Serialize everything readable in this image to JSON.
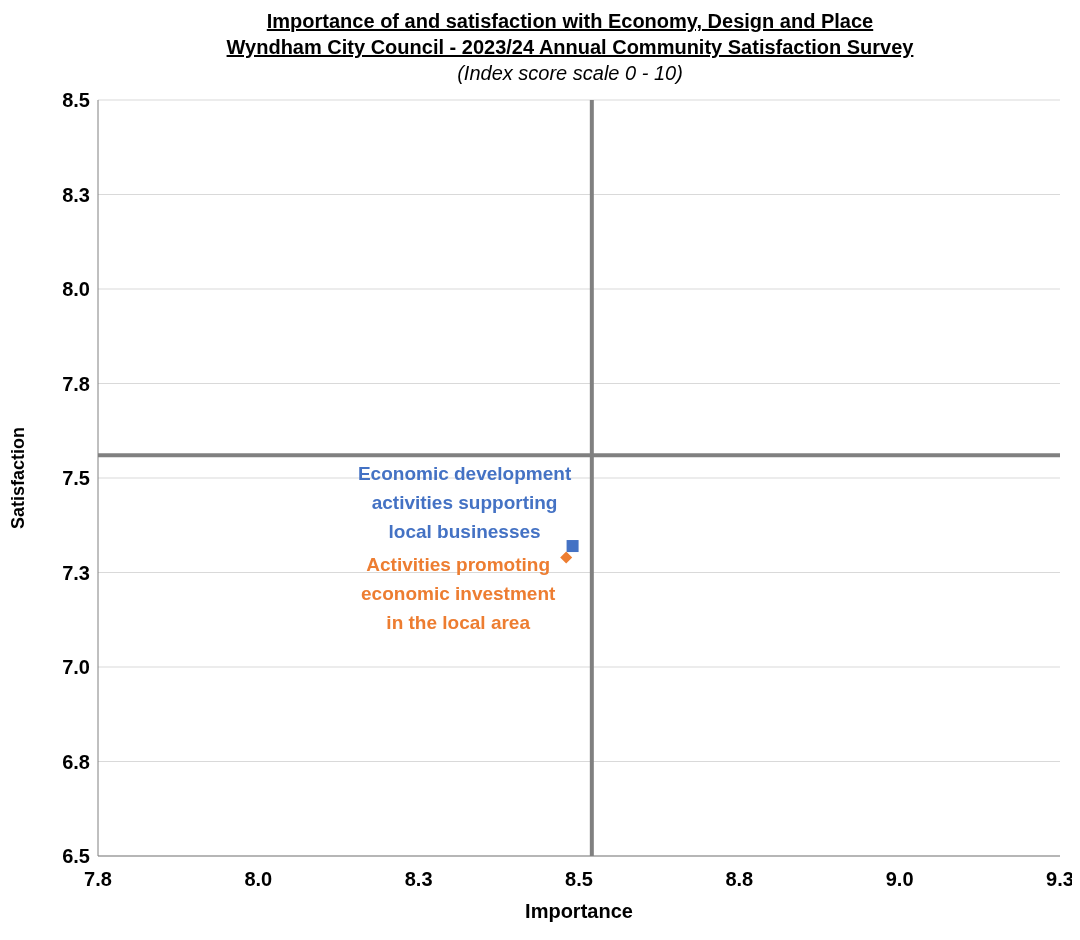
{
  "chart_data": {
    "type": "scatter",
    "title": "Importance of and satisfaction  with Economy, Design and Place\nWyndham City Council - 2023/24 Annual Community Satisfaction  Survey",
    "subtitle": "(Index score  scale 0 - 10)",
    "xlabel": "Importance",
    "ylabel": "Satisfaction",
    "xlim": [
      7.75,
      9.25
    ],
    "xticks": [
      {
        "value": 7.75,
        "label": "7.8"
      },
      {
        "value": 8,
        "label": "8.0"
      },
      {
        "value": 8.25,
        "label": "8.3"
      },
      8.5,
      {
        "value": 8.75,
        "label": "8.8"
      },
      {
        "value": 9,
        "label": "9.0"
      },
      {
        "value": 9.25,
        "label": "9.3"
      }
    ],
    "ylim": [
      6.5,
      8.5
    ],
    "yticks": [
      6.5,
      {
        "value": 6.75,
        "label": "6.8"
      },
      {
        "value": 7,
        "label": "7.0"
      },
      {
        "value": 7.25,
        "label": "7.3"
      },
      7.5,
      {
        "value": 7.75,
        "label": "7.8"
      },
      {
        "value": 8,
        "label": "8.0"
      },
      {
        "value": 8.25,
        "label": "8.3"
      },
      8.5
    ],
    "grid": "y",
    "ref_lines": [
      {
        "axis": "x",
        "value": 8.52,
        "color": "#808080"
      },
      {
        "axis": "y",
        "value": 7.56,
        "color": "#808080"
      }
    ],
    "series": [
      {
        "name": "Economic development activities supporting local businesses",
        "color": "#4472c4",
        "marker": "square",
        "x": [
          8.49
        ],
        "values": [
          7.32
        ]
      },
      {
        "name": "Activities promoting economic investment in the local area",
        "color": "#ed7d31",
        "marker": "diamond",
        "x": [
          8.48
        ],
        "values": [
          7.29
        ]
      }
    ]
  }
}
